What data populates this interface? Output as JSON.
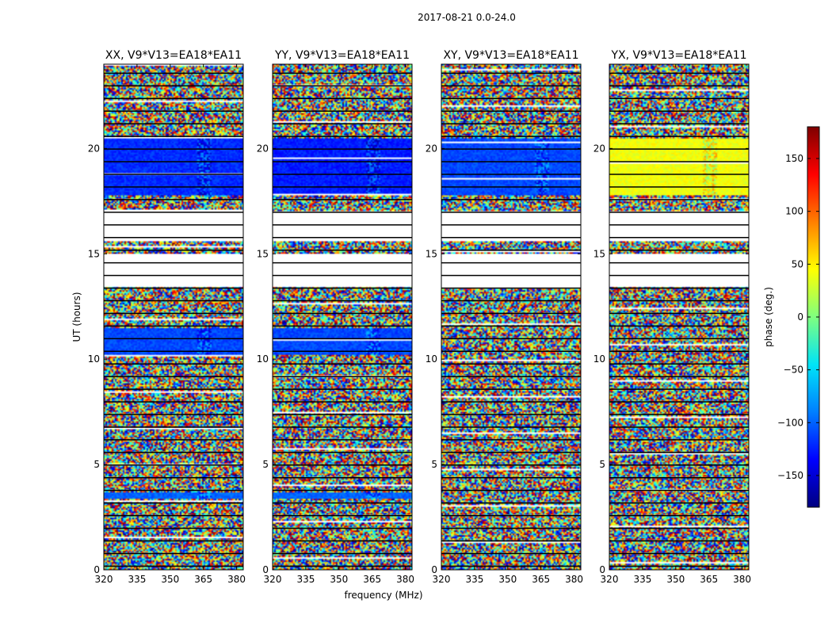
{
  "figure": {
    "suptitle": "2017-08-21 0.0-24.0",
    "xlabel": "frequency (MHz)",
    "ylabel": "UT (hours)"
  },
  "colorbar": {
    "label": "phase (deg.)",
    "range": [
      -180,
      180
    ],
    "ticks": [
      -150,
      -100,
      -50,
      0,
      50,
      100,
      150
    ],
    "tick_labels": [
      "−150",
      "−100",
      "−50",
      "0",
      "50",
      "100",
      "150"
    ],
    "colormap": [
      "#00007f",
      "#0000ff",
      "#007fff",
      "#00e4f7",
      "#7fff7f",
      "#ffff00",
      "#ff7f00",
      "#ff0000",
      "#7f0000"
    ]
  },
  "chart_data": [
    {
      "type": "heatmap",
      "title": "XX, V9*V13=EA18*EA11",
      "polarization": "XX",
      "xlabel": "frequency (MHz)",
      "ylabel": "UT (hours)",
      "xlim": [
        320,
        383
      ],
      "ylim": [
        0,
        24
      ],
      "xticks": [
        320,
        335,
        350,
        365,
        380
      ],
      "yticks": [
        0,
        5,
        10,
        15,
        20
      ],
      "value_range": [
        -180,
        180
      ],
      "coherent_blocks": [
        {
          "ut": [
            17.8,
            20.5
          ],
          "phase_deg": -120
        },
        {
          "ut": [
            10.2,
            11.5
          ],
          "phase_deg": -110
        },
        {
          "ut": [
            3.4,
            3.7
          ],
          "phase_deg": -100
        }
      ],
      "no_data_ut": [
        [
          13.4,
          15.0
        ],
        [
          15.6,
          17.0
        ]
      ]
    },
    {
      "type": "heatmap",
      "title": "YY, V9*V13=EA18*EA11",
      "polarization": "YY",
      "xlabel": "frequency (MHz)",
      "ylabel": "UT (hours)",
      "xlim": [
        320,
        383
      ],
      "ylim": [
        0,
        24
      ],
      "xticks": [
        320,
        335,
        350,
        365,
        380
      ],
      "yticks": [
        0,
        5,
        10,
        15,
        20
      ],
      "value_range": [
        -180,
        180
      ],
      "coherent_blocks": [
        {
          "ut": [
            17.8,
            20.5
          ],
          "phase_deg": -125
        },
        {
          "ut": [
            10.2,
            11.5
          ],
          "phase_deg": -110
        },
        {
          "ut": [
            3.4,
            3.7
          ],
          "phase_deg": -100
        }
      ],
      "no_data_ut": [
        [
          13.4,
          15.0
        ],
        [
          15.6,
          17.0
        ]
      ]
    },
    {
      "type": "heatmap",
      "title": "XY, V9*V13=EA18*EA11",
      "polarization": "XY",
      "xlabel": "frequency (MHz)",
      "ylabel": "UT (hours)",
      "xlim": [
        320,
        383
      ],
      "ylim": [
        0,
        24
      ],
      "xticks": [
        320,
        335,
        350,
        365,
        380
      ],
      "yticks": [
        0,
        5,
        10,
        15,
        20
      ],
      "value_range": [
        -180,
        180
      ],
      "coherent_blocks": [
        {
          "ut": [
            17.8,
            20.5
          ],
          "phase_deg": -110
        }
      ],
      "no_data_ut": [
        [
          13.4,
          15.0
        ],
        [
          15.6,
          17.0
        ]
      ]
    },
    {
      "type": "heatmap",
      "title": "YX, V9*V13=EA18*EA11",
      "polarization": "YX",
      "xlabel": "frequency (MHz)",
      "ylabel": "UT (hours)",
      "xlim": [
        320,
        383
      ],
      "ylim": [
        0,
        24
      ],
      "xticks": [
        320,
        335,
        350,
        365,
        380
      ],
      "yticks": [
        0,
        5,
        10,
        15,
        20
      ],
      "value_range": [
        -180,
        180
      ],
      "coherent_blocks": [
        {
          "ut": [
            17.8,
            20.5
          ],
          "phase_deg": 40
        }
      ],
      "no_data_ut": [
        [
          13.4,
          15.0
        ],
        [
          15.6,
          17.0
        ]
      ]
    }
  ]
}
